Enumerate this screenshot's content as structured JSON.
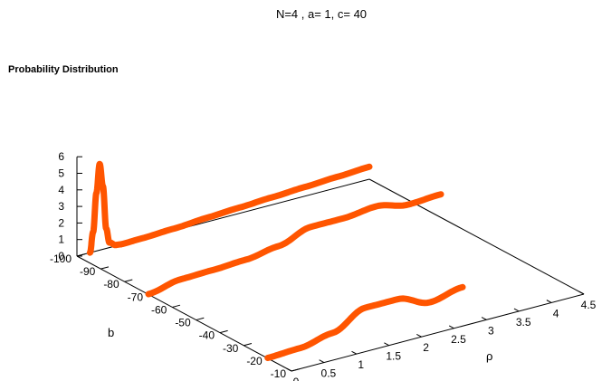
{
  "chart_data": {
    "type": "line",
    "title": "N=4 ,    a= 1,  c= 40",
    "zlabel": "Probability Distribution",
    "xlabel": "ρ",
    "ylabel": "b",
    "xlim": [
      0,
      4.5
    ],
    "ylim": [
      -100,
      -10
    ],
    "zlim": [
      0,
      6
    ],
    "x_ticks": [
      "0",
      "0.5",
      "1",
      "1.5",
      "2",
      "2.5",
      "3",
      "3.5",
      "4",
      "4.5"
    ],
    "y_ticks": [
      "-10",
      "-20",
      "-30",
      "-40",
      "-50",
      "-60",
      "-70",
      "-80",
      "-90",
      "-100"
    ],
    "z_ticks": [
      "0",
      "1",
      "2",
      "3",
      "4",
      "5",
      "6"
    ],
    "grid": false,
    "series": [
      {
        "b": -20,
        "x": [
          0,
          0.5,
          1.0,
          1.5,
          2.0,
          2.5,
          3.0
        ],
        "y": [
          0.02,
          0.1,
          0.5,
          1.5,
          1.5,
          0.8,
          1.2
        ]
      },
      {
        "b": -70,
        "x": [
          0,
          0.5,
          1.0,
          1.5,
          2.0,
          2.5,
          3.0,
          3.5,
          4.0,
          4.5
        ],
        "y": [
          0.02,
          0.4,
          0.45,
          0.55,
          0.85,
          1.5,
          1.5,
          1.7,
          1.3,
          1.4
        ]
      },
      {
        "b": -100,
        "x": [
          0.2,
          0.25,
          0.3,
          0.35,
          0.4,
          0.45,
          0.5,
          0.6,
          0.7,
          1.0,
          1.5,
          2.0,
          2.5,
          3.0,
          3.5,
          4.0,
          4.5
        ],
        "y": [
          0.0,
          1.2,
          3.5,
          5.2,
          3.8,
          1.2,
          0.3,
          0.05,
          0.01,
          0.04,
          0.12,
          0.25,
          0.35,
          0.45,
          0.55,
          0.65,
          0.75
        ]
      }
    ],
    "color": "#ff5500"
  }
}
